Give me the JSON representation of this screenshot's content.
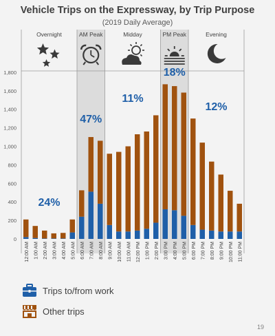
{
  "colors": {
    "work": "#1f5fa8",
    "other": "#a0520f",
    "pct": "#1f5fa8",
    "band": "#dcdcdc",
    "divider": "#9a9a9a"
  },
  "chart_data": {
    "type": "bar",
    "stacked": true,
    "title": "Vehicle Trips on the Expressway, by Trip Purpose",
    "subtitle": "(2019 Daily Average)",
    "ylim": [
      0,
      1900
    ],
    "yticks": [
      "0",
      "200",
      "400",
      "600",
      "800",
      "1,000",
      "1,200",
      "1,400",
      "1,600",
      "1,800"
    ],
    "grid": false,
    "categories": [
      "12:00 AM",
      "1:00 AM",
      "2:00 AM",
      "3:00 AM",
      "4:00 AM",
      "5:00 AM",
      "6:00 AM",
      "7:00 AM",
      "8:00 AM",
      "9:00 AM",
      "10:00 AM",
      "11:00 AM",
      "12:00 PM",
      "1:00 PM",
      "2:00 PM",
      "3:00 PM",
      "4:00 PM",
      "5:00 PM",
      "6:00 PM",
      "7:00 PM",
      "8:00 PM",
      "9:00 PM",
      "10:00 PM",
      "11:00 PM"
    ],
    "series": [
      {
        "name": "Trips to/from work",
        "icon": "briefcase-icon",
        "values": [
          20,
          10,
          5,
          5,
          5,
          70,
          240,
          510,
          380,
          150,
          80,
          80,
          90,
          110,
          175,
          320,
          310,
          250,
          150,
          100,
          90,
          80,
          80,
          80
        ]
      },
      {
        "name": "Other trips",
        "icon": "storefront-icon",
        "values": [
          190,
          130,
          85,
          55,
          60,
          140,
          285,
          590,
          680,
          770,
          860,
          920,
          1040,
          1050,
          1160,
          1350,
          1340,
          1330,
          1150,
          940,
          745,
          615,
          440,
          300
        ]
      }
    ],
    "periods": [
      {
        "label": "Overnight",
        "icon": "stars-icon",
        "pct": "24%",
        "start": 0,
        "end": 5
      },
      {
        "label": "AM Peak",
        "icon": "alarm-clock-icon",
        "pct": "47%",
        "start": 6,
        "end": 8
      },
      {
        "label": "Midday",
        "icon": "partly-cloudy-icon",
        "pct": "11%",
        "start": 9,
        "end": 14
      },
      {
        "label": "PM Peak",
        "icon": "sunset-icon",
        "pct": "18%",
        "start": 15,
        "end": 17
      },
      {
        "label": "Evening",
        "icon": "moon-icon",
        "pct": "12%",
        "start": 18,
        "end": 23
      }
    ]
  },
  "legend": [
    {
      "label": "Trips to/from work",
      "icon": "briefcase-icon"
    },
    {
      "label": "Other trips",
      "icon": "storefront-icon"
    }
  ],
  "page_number": "19"
}
